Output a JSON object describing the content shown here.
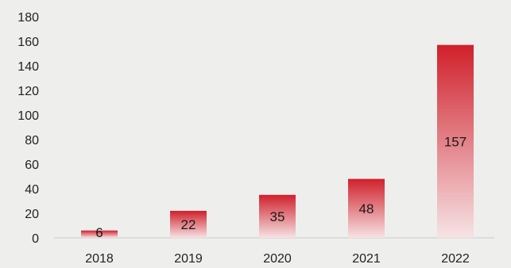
{
  "chart_data": {
    "type": "bar",
    "title": "",
    "xlabel": "",
    "ylabel": "",
    "categories": [
      "2018",
      "2019",
      "2020",
      "2021",
      "2022"
    ],
    "values": [
      6,
      22,
      35,
      48,
      157
    ],
    "data_labels": [
      "6",
      "22",
      "35",
      "48",
      "157"
    ],
    "y_ticks": [
      "0",
      "20",
      "40",
      "60",
      "80",
      "100",
      "120",
      "140",
      "160",
      "180"
    ],
    "ylim": [
      0,
      180
    ],
    "grid": false,
    "legend": "none",
    "colors": {
      "bar_top": "#d0202b",
      "bar_bottom": "#f6e3e5",
      "background": "#eeefec",
      "text": "#222222"
    }
  }
}
